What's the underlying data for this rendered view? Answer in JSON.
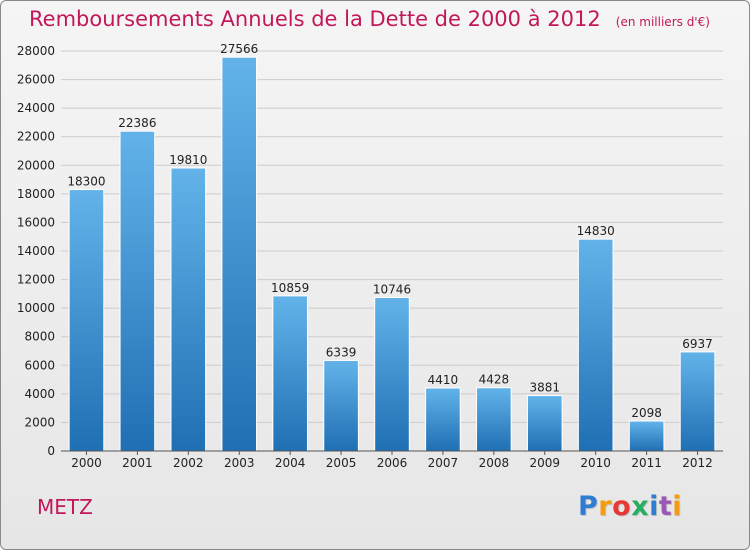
{
  "header": {
    "title": "Remboursements Annuels de la Dette de 2000 à 2012",
    "unit": "(en milliers d'€)"
  },
  "footer": {
    "city": "METZ",
    "logo": "Proxiti",
    "logo_colors": [
      "#2e7dd1",
      "#f39c12",
      "#e53935",
      "#27ae60",
      "#2e7dd1",
      "#9b59b6",
      "#f39c12"
    ]
  },
  "colors": {
    "bar_top": "#63b3ea",
    "bar_bottom": "#1f6fb4",
    "grid": "#cccccc",
    "axis_text": "#222222",
    "title": "#c2185b"
  },
  "chart_data": {
    "type": "bar",
    "title": "Remboursements Annuels de la Dette de 2000 à 2012",
    "xlabel": "",
    "ylabel": "",
    "categories": [
      "2000",
      "2001",
      "2002",
      "2003",
      "2004",
      "2005",
      "2006",
      "2007",
      "2008",
      "2009",
      "2010",
      "2011",
      "2012"
    ],
    "values": [
      18300,
      22386,
      19810,
      27566,
      10859,
      6339,
      10746,
      4410,
      4428,
      3881,
      14830,
      2098,
      6937
    ],
    "ylim": [
      0,
      28000
    ],
    "yticks": [
      0,
      2000,
      4000,
      6000,
      8000,
      10000,
      12000,
      14000,
      16000,
      18000,
      20000,
      22000,
      24000,
      26000,
      28000
    ],
    "grid": true,
    "data_labels": true,
    "legend": "none"
  }
}
